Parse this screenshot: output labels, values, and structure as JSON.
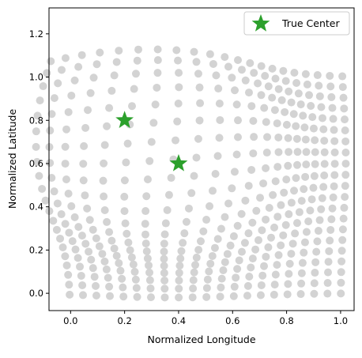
{
  "chart_data": {
    "type": "scatter",
    "xlabel": "Normalized Longitude",
    "ylabel": "Normalized Latitude",
    "xlim": [
      -0.08,
      1.05
    ],
    "ylim": [
      -0.08,
      1.32
    ],
    "x_ticks": [
      "0.0",
      "0.2",
      "0.4",
      "0.6",
      "0.8",
      "1.0"
    ],
    "y_ticks": [
      "0.0",
      "0.2",
      "0.4",
      "0.6",
      "0.8",
      "1.0",
      "1.2"
    ],
    "grid": false,
    "legend": {
      "position": "top-right",
      "entries": [
        "True Center"
      ]
    },
    "series": [
      {
        "marker": "circle",
        "color": "#d3d3d3",
        "grid_size": 21,
        "source_points": "regular 21 x 21 grid of points over [0,1] x [0,1]",
        "warp_centers": [
          [
            0.2,
            0.8
          ],
          [
            0.4,
            0.6
          ]
        ],
        "warp_strength": 0.55,
        "warp_width": 0.35
      },
      {
        "name": "True Center",
        "marker": "star",
        "color": "#2ca02c",
        "x": [
          0.2,
          0.4
        ],
        "y": [
          0.8,
          0.6
        ]
      }
    ]
  }
}
